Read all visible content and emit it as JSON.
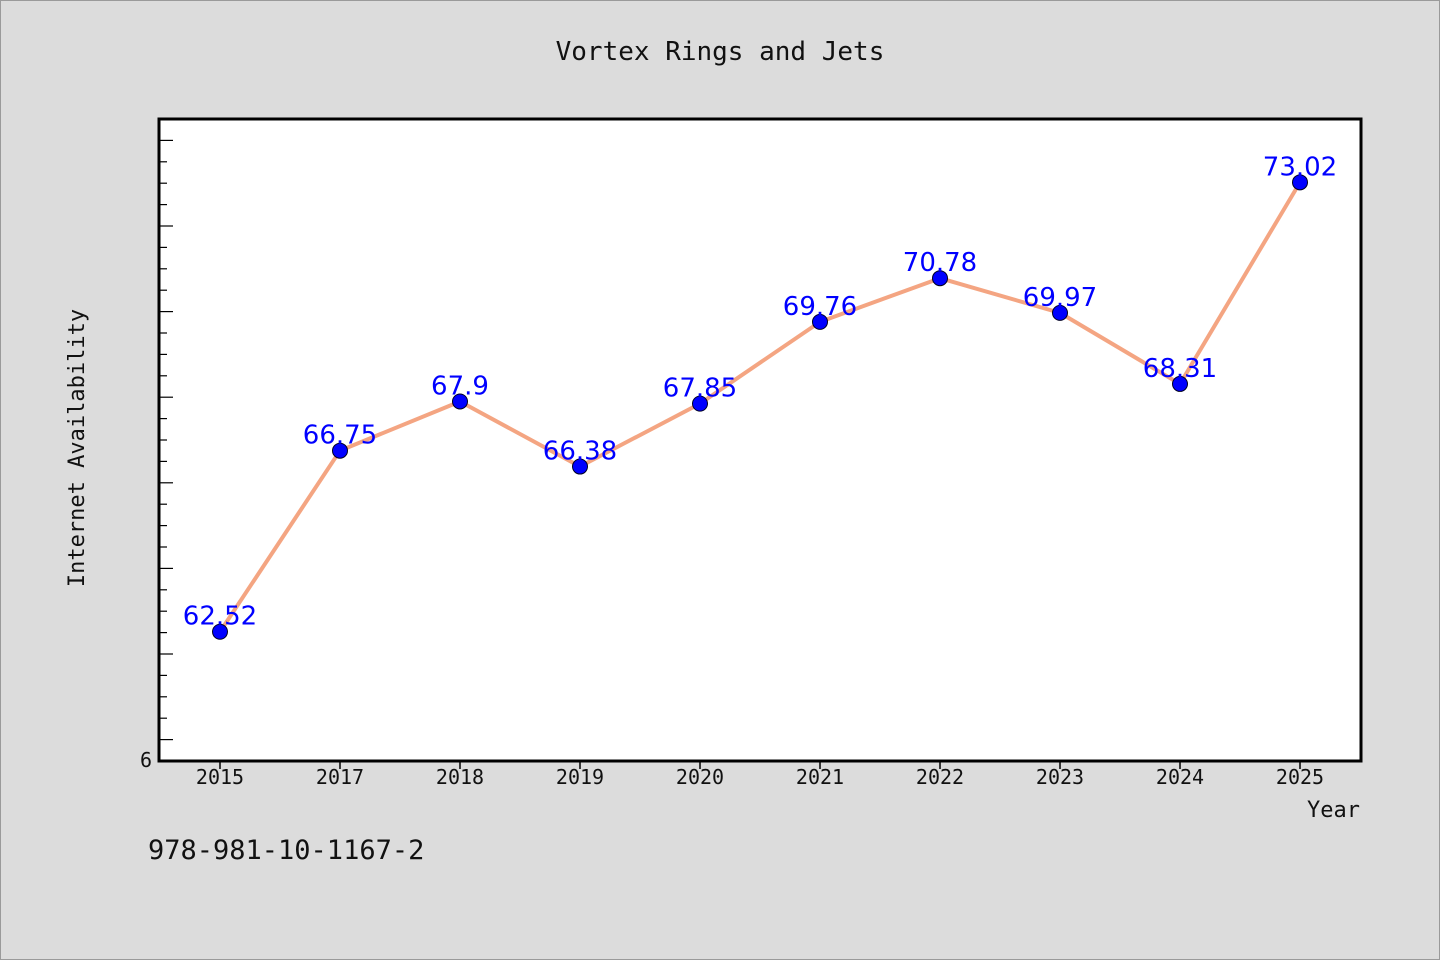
{
  "chart_data": {
    "type": "line",
    "title": "Vortex Rings and Jets",
    "xlabel": "Year",
    "ylabel": "Internet Availability",
    "categories": [
      "2015",
      "2017",
      "2018",
      "2019",
      "2020",
      "2021",
      "2022",
      "2023",
      "2024",
      "2025"
    ],
    "series": [
      {
        "values": [
          62.52,
          66.75,
          67.9,
          66.38,
          67.85,
          69.76,
          70.78,
          69.97,
          68.31,
          73.02
        ],
        "labels": [
          "62.52",
          "66.75",
          "67.9",
          "66.38",
          "67.85",
          "69.76",
          "70.78",
          "69.97",
          "68.31",
          "73.02"
        ]
      }
    ],
    "ylim": [
      59.5,
      74.5
    ],
    "y_corner_label": "6",
    "grid": false,
    "colors": {
      "line": "#f4a582",
      "marker": "#0000ff",
      "label": "#0000ff",
      "background": "#dcdcdc",
      "plot_background": "#ffffff"
    }
  },
  "footer": {
    "text": "978-981-10-1167-2"
  }
}
